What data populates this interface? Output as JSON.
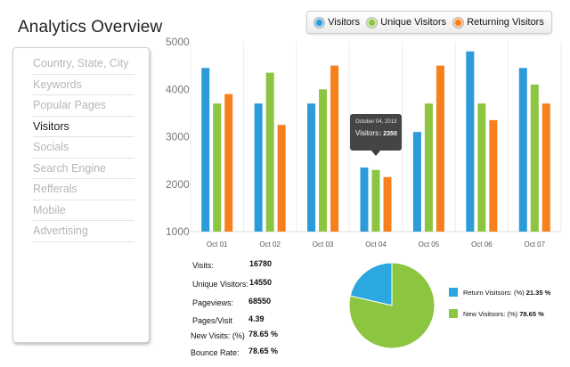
{
  "page": {
    "title": "Analytics Overview"
  },
  "colors": {
    "visitors": "#2b9bd9",
    "unique": "#8cc540",
    "returning": "#f7801d",
    "grid": "#ececec"
  },
  "legend": [
    {
      "label": "Visitors",
      "color": "#2b9bd9",
      "icon": "circle-toggle-icon"
    },
    {
      "label": "Unique Visitors",
      "color": "#8cc540",
      "icon": "circle-toggle-icon"
    },
    {
      "label": "Returning Visitors",
      "color": "#f7801d",
      "icon": "circle-toggle-icon"
    }
  ],
  "sidebar": {
    "items": [
      {
        "label": "Country, State, City",
        "active": false
      },
      {
        "label": "Keywords",
        "active": false
      },
      {
        "label": "Popular Pages",
        "active": false
      },
      {
        "label": "Visitors",
        "active": true
      },
      {
        "label": "Socials",
        "active": false
      },
      {
        "label": "Search Engine",
        "active": false
      },
      {
        "label": "Refferals",
        "active": false
      },
      {
        "label": "Mobile",
        "active": false
      },
      {
        "label": "Advertising",
        "active": false
      }
    ]
  },
  "chart_data": {
    "type": "bar",
    "categories": [
      "Oct 01",
      "Oct 02",
      "Oct 03",
      "Oct 04",
      "Oct 05",
      "Oct 06",
      "Oct 07"
    ],
    "series": [
      {
        "name": "Visitors",
        "color": "#2b9bd9",
        "values": [
          4450,
          3700,
          3700,
          2350,
          3100,
          4800,
          4450
        ]
      },
      {
        "name": "Unique Visitors",
        "color": "#8cc540",
        "values": [
          3700,
          4350,
          4000,
          2300,
          3700,
          3700,
          4100
        ]
      },
      {
        "name": "Returning Visitors",
        "color": "#f7801d",
        "values": [
          3900,
          3250,
          4500,
          2150,
          4500,
          3350,
          3700
        ]
      }
    ],
    "ylim": [
      1000,
      5000
    ],
    "yticks": [
      1000,
      2000,
      3000,
      4000,
      5000
    ],
    "grid": true,
    "tooltip": {
      "date": "October 04, 2013",
      "label": "Visitors",
      "value": ": 2350"
    }
  },
  "stats": [
    {
      "label": "Visits:",
      "value": "16780"
    },
    {
      "label": "Unique Visitors:",
      "value": "14550"
    },
    {
      "label": "Pageviews:",
      "value": "68550"
    },
    {
      "label": "Pages/Visit",
      "value": "4.39"
    },
    {
      "label": "New Visits: (%)",
      "value": "78.65 %"
    },
    {
      "label": "Bounce Rate:",
      "value": "78.65 %"
    }
  ],
  "pie": {
    "slices": [
      {
        "name": "Return Visitsors: (%)",
        "value": 21.35,
        "value_text": "21.35 %",
        "color": "#2ba8e0"
      },
      {
        "name": "New Visitsors: (%)",
        "value": 78.65,
        "value_text": "78.65 %",
        "color": "#8cc540"
      }
    ]
  }
}
